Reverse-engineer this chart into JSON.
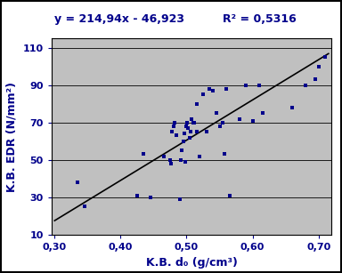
{
  "scatter_x": [
    0.335,
    0.345,
    0.425,
    0.435,
    0.445,
    0.465,
    0.475,
    0.476,
    0.478,
    0.48,
    0.482,
    0.485,
    0.49,
    0.491,
    0.492,
    0.495,
    0.496,
    0.498,
    0.5,
    0.501,
    0.502,
    0.505,
    0.506,
    0.508,
    0.51,
    0.512,
    0.515,
    0.516,
    0.52,
    0.525,
    0.53,
    0.535,
    0.54,
    0.545,
    0.55,
    0.555,
    0.558,
    0.56,
    0.565,
    0.58,
    0.59,
    0.6,
    0.61,
    0.615,
    0.66,
    0.68,
    0.695,
    0.7,
    0.71
  ],
  "scatter_y": [
    38,
    25,
    31,
    53,
    30,
    52,
    50,
    48,
    65,
    68,
    70,
    63,
    29,
    50,
    55,
    60,
    64,
    49,
    68,
    70,
    67,
    62,
    65,
    72,
    70,
    70,
    80,
    65,
    52,
    85,
    65,
    88,
    87,
    75,
    68,
    70,
    53,
    88,
    31,
    72,
    90,
    71,
    90,
    75,
    78,
    90,
    93,
    100,
    105
  ],
  "slope": 214.94,
  "intercept": -46.923,
  "x_line_start": 0.3,
  "x_line_end": 0.715,
  "equation": "y = 214,94x - 46,923",
  "r2_text": "R² = 0,5316",
  "xlabel": "K.B. d₀ (g/cm³)",
  "ylabel": "K.B. EDR (N/mm²)",
  "xlim": [
    0.295,
    0.72
  ],
  "ylim": [
    10,
    115
  ],
  "xticks": [
    0.3,
    0.4,
    0.5,
    0.6,
    0.7
  ],
  "yticks": [
    10,
    30,
    50,
    70,
    90,
    110
  ],
  "scatter_color": "#00008B",
  "line_color": "#000000",
  "plot_bg_color": "#C0C0C0",
  "fig_bg_color": "#ffffff",
  "outer_border_color": "#000000",
  "title_color": "#00008B",
  "label_color": "#00008B",
  "tick_color": "#00008B",
  "title_fontsize": 9,
  "axis_label_fontsize": 9,
  "tick_fontsize": 8,
  "marker_size": 12
}
